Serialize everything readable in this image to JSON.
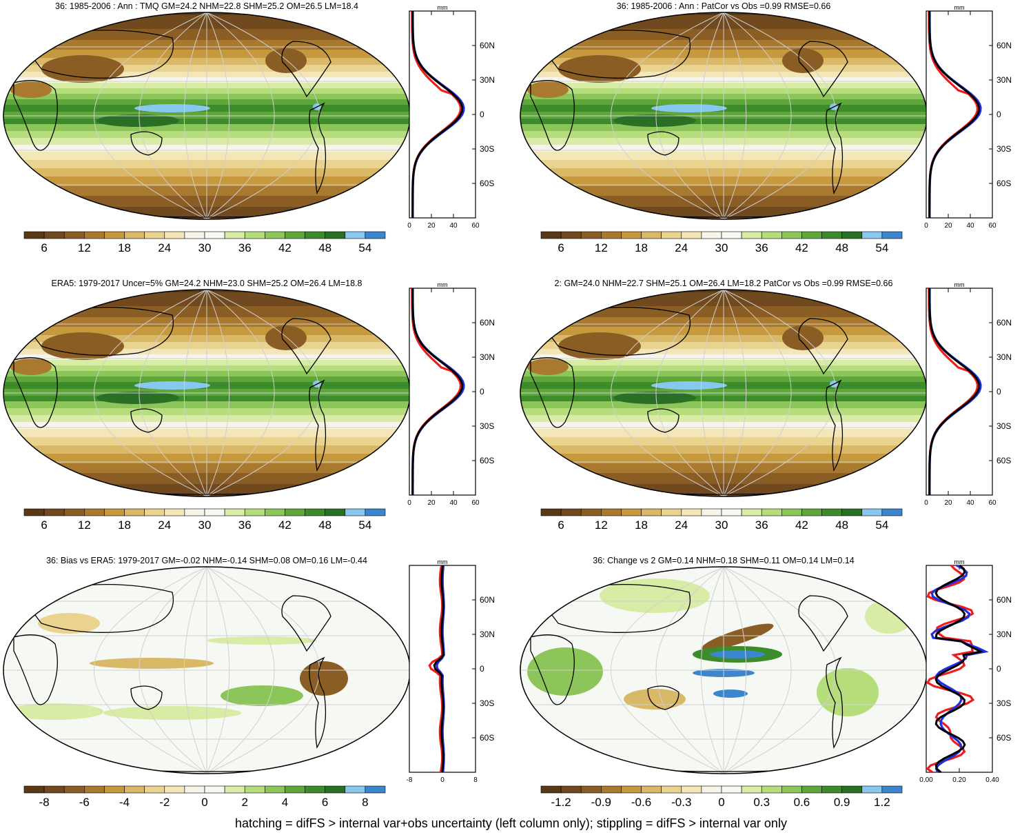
{
  "panels": [
    {
      "title": "36: 1985-2006 : Ann : TMQ GM=24.2 NHM=22.8 SHM=25.2 OM=26.5 LM=18.4",
      "cbar": [
        "6",
        "12",
        "18",
        "24",
        "30",
        "36",
        "42",
        "48",
        "54"
      ],
      "cbar_colors": [
        "#5a3a16",
        "#704a1e",
        "#8a5d24",
        "#a8792f",
        "#c6993f",
        "#d9b867",
        "#ead28f",
        "#f3e6b9",
        "#f7f4ea",
        "#f5f8f3",
        "#d8eca5",
        "#b5dd7c",
        "#8cc65a",
        "#5fa73a",
        "#3d8c2b",
        "#2a6f26",
        "#88c8ee",
        "#3c86cd"
      ],
      "fill": "field"
    },
    {
      "title": "36: 1985-2006 : Ann : PatCor vs Obs =0.99 RMSE=0.66",
      "cbar": [
        "6",
        "12",
        "18",
        "24",
        "30",
        "36",
        "42",
        "48",
        "54"
      ],
      "cbar_colors": [
        "#5a3a16",
        "#704a1e",
        "#8a5d24",
        "#a8792f",
        "#c6993f",
        "#d9b867",
        "#ead28f",
        "#f3e6b9",
        "#f7f4ea",
        "#f5f8f3",
        "#d8eca5",
        "#b5dd7c",
        "#8cc65a",
        "#5fa73a",
        "#3d8c2b",
        "#2a6f26",
        "#88c8ee",
        "#3c86cd"
      ],
      "fill": "field"
    },
    {
      "title": "ERA5: 1979-2017 Uncer=5% GM=24.2 NHM=23.0 SHM=25.2 OM=26.4 LM=18.8",
      "cbar": [
        "6",
        "12",
        "18",
        "24",
        "30",
        "36",
        "42",
        "48",
        "54"
      ],
      "cbar_colors": [
        "#5a3a16",
        "#704a1e",
        "#8a5d24",
        "#a8792f",
        "#c6993f",
        "#d9b867",
        "#ead28f",
        "#f3e6b9",
        "#f7f4ea",
        "#f5f8f3",
        "#d8eca5",
        "#b5dd7c",
        "#8cc65a",
        "#5fa73a",
        "#3d8c2b",
        "#2a6f26",
        "#88c8ee",
        "#3c86cd"
      ],
      "fill": "field"
    },
    {
      "title": "2: GM=24.0 NHM=22.7 SHM=25.1 OM=26.4 LM=18.2 PatCor vs Obs =0.99 RMSE=0.66",
      "cbar": [
        "6",
        "12",
        "18",
        "24",
        "30",
        "36",
        "42",
        "48",
        "54"
      ],
      "cbar_colors": [
        "#5a3a16",
        "#704a1e",
        "#8a5d24",
        "#a8792f",
        "#c6993f",
        "#d9b867",
        "#ead28f",
        "#f3e6b9",
        "#f7f4ea",
        "#f5f8f3",
        "#d8eca5",
        "#b5dd7c",
        "#8cc65a",
        "#5fa73a",
        "#3d8c2b",
        "#2a6f26",
        "#88c8ee",
        "#3c86cd"
      ],
      "fill": "field"
    },
    {
      "title": "36: Bias vs ERA5: 1979-2017 GM=-0.02 NHM=-0.14 SHM=0.08 OM=0.16 LM=-0.44",
      "cbar": [
        "-8",
        "-6",
        "-4",
        "-2",
        "0",
        "2",
        "4",
        "6",
        "8"
      ],
      "cbar_colors": [
        "#5a3a16",
        "#704a1e",
        "#8a5d24",
        "#a8792f",
        "#c6993f",
        "#d9b867",
        "#ead28f",
        "#f3e6b9",
        "#f7f4ea",
        "#f5f8f3",
        "#d8eca5",
        "#b5dd7c",
        "#8cc65a",
        "#5fa73a",
        "#3d8c2b",
        "#2a6f26",
        "#88c8ee",
        "#3c86cd"
      ],
      "fill": "diff"
    },
    {
      "title": "36: Change vs 2 GM=0.14 NHM=0.18 SHM=0.11 OM=0.14 LM=0.14",
      "cbar": [
        "-1.2",
        "-0.9",
        "-0.6",
        "-0.3",
        "0",
        "0.3",
        "0.6",
        "0.9",
        "1.2"
      ],
      "cbar_colors": [
        "#5a3a16",
        "#704a1e",
        "#8a5d24",
        "#a8792f",
        "#c6993f",
        "#d9b867",
        "#ead28f",
        "#f3e6b9",
        "#f7f4ea",
        "#f5f8f3",
        "#d8eca5",
        "#b5dd7c",
        "#8cc65a",
        "#5fa73a",
        "#3d8c2b",
        "#2a6f26",
        "#88c8ee",
        "#3c86cd"
      ],
      "fill": "diff"
    }
  ],
  "profiles": [
    {
      "unit": "mm",
      "lat_labels": [
        "60N",
        "30N",
        "0",
        "30S",
        "60S"
      ],
      "x_ticks": [
        "0",
        "20",
        "40",
        "60"
      ],
      "kind": "abs"
    },
    {
      "unit": "mm",
      "lat_labels": [
        "60N",
        "30N",
        "0",
        "30S",
        "60S"
      ],
      "x_ticks": [
        "0",
        "20",
        "40",
        "60"
      ],
      "kind": "abs"
    },
    {
      "unit": "mm",
      "lat_labels": [
        "60N",
        "30N",
        "0",
        "30S",
        "60S"
      ],
      "x_ticks": [
        "0",
        "20",
        "40",
        "60"
      ],
      "kind": "abs"
    },
    {
      "unit": "mm",
      "lat_labels": [
        "60N",
        "30N",
        "0",
        "30S",
        "60S"
      ],
      "x_ticks": [
        "0",
        "20",
        "40",
        "60"
      ],
      "kind": "abs"
    },
    {
      "unit": "mm",
      "lat_labels": [
        "60N",
        "30N",
        "0",
        "30S",
        "60S"
      ],
      "x_ticks": [
        "-8",
        "0",
        "8"
      ],
      "kind": "bias"
    },
    {
      "unit": "mm",
      "lat_labels": [
        "60N",
        "30N",
        "0",
        "30S",
        "60S"
      ],
      "x_ticks": [
        "0.00",
        "0.20",
        "0.40"
      ],
      "kind": "change"
    }
  ],
  "profile_line_colors": {
    "red": "#ee1c1c",
    "blue": "#1f2fe0",
    "black": "#000000"
  },
  "footer": "hatching = difFS > internal var+obs uncertainty (left column only); stippling = difFS > internal var only"
}
